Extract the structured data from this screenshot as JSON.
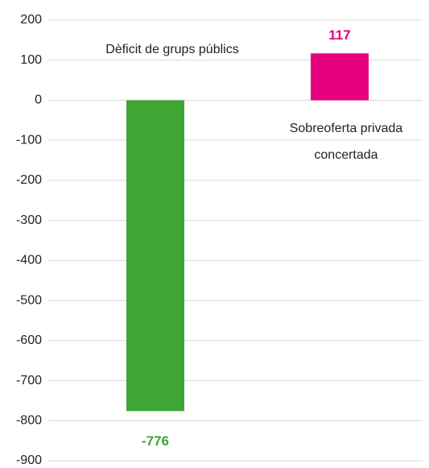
{
  "chart_data": {
    "type": "bar",
    "categories": [
      "Dèficit de grups públics",
      "Sobreoferta privada concertada"
    ],
    "values": [
      -776,
      117
    ],
    "colors": [
      "#3fa535",
      "#e6007e"
    ],
    "ylim": [
      -900,
      200
    ],
    "yticks": [
      -900,
      -800,
      -700,
      -600,
      -500,
      -400,
      -300,
      -200,
      -100,
      0,
      100,
      200
    ],
    "grid": true
  }
}
